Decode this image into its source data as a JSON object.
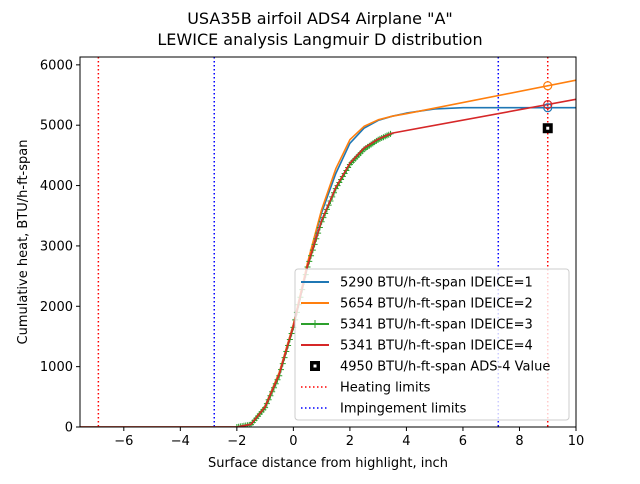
{
  "chart_data": {
    "type": "line",
    "title": "USA35B airfoil ADS4 Airplane \"A\"",
    "subtitle": "LEWICE analysis Langmuir D distribution",
    "xlabel": "Surface distance from highlight, inch",
    "ylabel": "Cumulative heat, BTU/h-ft-span",
    "xlim": [
      -7.55,
      10
    ],
    "ylim": [
      0,
      6130
    ],
    "xticks": [
      -6,
      -4,
      -2,
      0,
      2,
      4,
      6,
      8,
      10
    ],
    "yticks": [
      0,
      1000,
      2000,
      3000,
      4000,
      5000,
      6000
    ],
    "grid": false,
    "legend_placement": "lower-right",
    "series": [
      {
        "name": "5290 BTU/h-ft-span IDEICE=1",
        "color": "#1f77b4",
        "marker": "none",
        "x": [
          -7.55,
          -2,
          -1.5,
          -1,
          -0.5,
          0,
          0.5,
          1,
          1.5,
          2,
          2.5,
          3,
          3.5,
          4,
          5,
          6,
          10
        ],
        "y": [
          0,
          0,
          50,
          350,
          900,
          1700,
          2700,
          3550,
          4200,
          4700,
          4950,
          5080,
          5150,
          5200,
          5270,
          5290,
          5290
        ]
      },
      {
        "name": "5654 BTU/h-ft-span IDEICE=2",
        "color": "#ff7f0e",
        "marker": "none",
        "x": [
          -7.55,
          -2,
          -1.5,
          -1,
          -0.5,
          0,
          0.5,
          1,
          1.5,
          2,
          2.5,
          3,
          3.5,
          4,
          10
        ],
        "y": [
          0,
          0,
          50,
          350,
          900,
          1700,
          2720,
          3600,
          4280,
          4760,
          4980,
          5090,
          5150,
          5190,
          5745
        ]
      },
      {
        "name": "5341 BTU/h-ft-span IDEICE=3",
        "color": "#2ca02c",
        "marker": "plus",
        "x": [
          -2,
          -1.5,
          -1,
          -0.5,
          0,
          0.5,
          1,
          1.5,
          2,
          2.5,
          3,
          3.5
        ],
        "y": [
          0,
          40,
          320,
          850,
          1650,
          2650,
          3400,
          3950,
          4350,
          4600,
          4760,
          4870
        ]
      },
      {
        "name": "5341 BTU/h-ft-span IDEICE=4",
        "color": "#d62728",
        "marker": "none",
        "x": [
          -7.55,
          -2,
          -1.5,
          -1,
          -0.5,
          0,
          0.5,
          1,
          1.5,
          2,
          2.5,
          3,
          3.5,
          10
        ],
        "y": [
          0,
          0,
          45,
          330,
          870,
          1670,
          2670,
          3420,
          3970,
          4370,
          4620,
          4770,
          4870,
          5430
        ]
      },
      {
        "name": "4950 BTU/h-ft-span ADS-4 Value",
        "color": "#000000",
        "marker": "square",
        "x": [
          9
        ],
        "y": [
          4950
        ]
      }
    ],
    "endpoint_markers": [
      {
        "x": 9,
        "y": 5290,
        "color": "#1f77b4"
      },
      {
        "x": 9,
        "y": 5654,
        "color": "#ff7f0e"
      },
      {
        "x": 9,
        "y": 5341,
        "color": "#d62728"
      }
    ],
    "vertical_lines": [
      {
        "name": "Heating limits",
        "color": "#ff0000",
        "x": [
          -6.9,
          9.0
        ]
      },
      {
        "name": "Impingement limits",
        "color": "#0000ff",
        "x": [
          -2.8,
          7.25
        ]
      }
    ]
  }
}
